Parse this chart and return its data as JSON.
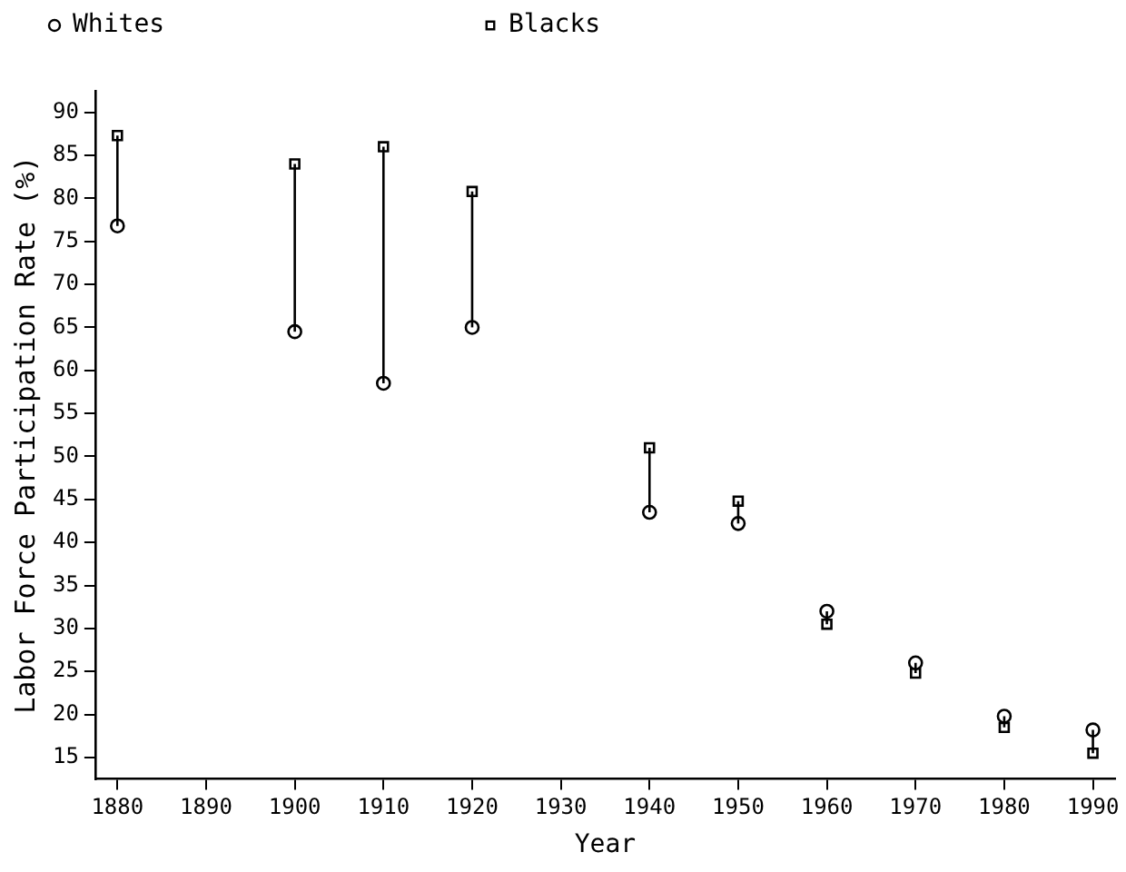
{
  "chart_data": {
    "type": "scatter",
    "xlabel": "Year",
    "ylabel": "Labor Force Participation Rate (%)",
    "x": [
      1880,
      1900,
      1910,
      1920,
      1940,
      1950,
      1960,
      1970,
      1980,
      1990
    ],
    "series": [
      {
        "name": "Whites",
        "color": "#000000",
        "marker": "circle",
        "values": [
          76.8,
          64.5,
          58.5,
          65,
          43.5,
          42.2,
          32,
          26,
          19.8,
          18.2
        ]
      },
      {
        "name": "Blacks",
        "color": "#000000",
        "marker": "square",
        "values": [
          87.3,
          84,
          86,
          80.8,
          51,
          44.8,
          30.5,
          24.8,
          18.5,
          15.5
        ]
      },
      {
        "type": "line",
        "color": "#000000",
        "marker": "none",
        "x": [
          1880,
          1880
        ],
        "values": [
          76.8,
          87.3
        ]
      },
      {
        "type": "line",
        "color": "#000000",
        "marker": "none",
        "x": [
          1900,
          1900
        ],
        "values": [
          64.5,
          84
        ]
      },
      {
        "type": "line",
        "color": "#000000",
        "marker": "none",
        "x": [
          1910,
          1910
        ],
        "values": [
          58.5,
          86
        ]
      },
      {
        "type": "line",
        "color": "#000000",
        "marker": "none",
        "x": [
          1920,
          1920
        ],
        "values": [
          65,
          80.8
        ]
      },
      {
        "type": "line",
        "color": "#000000",
        "marker": "none",
        "x": [
          1940,
          1940
        ],
        "values": [
          43.5,
          51
        ]
      },
      {
        "type": "line",
        "color": "#000000",
        "marker": "none",
        "x": [
          1950,
          1950
        ],
        "values": [
          42.2,
          44.8
        ]
      },
      {
        "type": "line",
        "color": "#000000",
        "marker": "none",
        "x": [
          1960,
          1960
        ],
        "values": [
          32,
          30.5
        ]
      },
      {
        "type": "line",
        "color": "#000000",
        "marker": "none",
        "x": [
          1970,
          1970
        ],
        "values": [
          26,
          24.8
        ]
      },
      {
        "type": "line",
        "color": "#000000",
        "marker": "none",
        "x": [
          1980,
          1980
        ],
        "values": [
          19.8,
          18.5
        ]
      },
      {
        "type": "line",
        "color": "#000000",
        "marker": "none",
        "x": [
          1990,
          1990
        ],
        "values": [
          18.2,
          15.5
        ]
      }
    ],
    "xlim": [
      1877.5,
      1992.5
    ],
    "xticks": [
      1880,
      1890,
      1900,
      1910,
      1920,
      1930,
      1940,
      1950,
      1960,
      1970,
      1980,
      1990
    ],
    "ylim": [
      12.5,
      92.5
    ],
    "yticks": [
      15,
      20,
      25,
      30,
      35,
      40,
      45,
      50,
      55,
      60,
      65,
      70,
      75,
      80,
      85,
      90
    ],
    "grid": false,
    "legend": "top left"
  }
}
